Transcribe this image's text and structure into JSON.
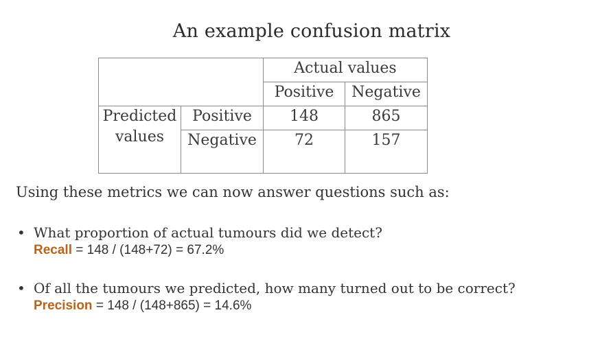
{
  "title": "An example confusion matrix",
  "matrix": {
    "actual_header": "Actual values",
    "actual_positive": "Positive",
    "actual_negative": "Negative",
    "predicted_header": "Predicted values",
    "pred_positive": "Positive",
    "pred_negative": "Negative",
    "tp": "148",
    "fp": "865",
    "fn": "72",
    "tn": "157"
  },
  "intro": "Using these metrics we can now answer questions such as:",
  "bullets": [
    {
      "question": "What proportion of actual tumours did we detect?",
      "term": "Recall",
      "expression": " = 148 / (148+72) = 67.2%"
    },
    {
      "question": "Of all the tumours we predicted, how many turned out to be correct?",
      "term": "Precision",
      "expression": " = 148 / (148+865) = 14.6%"
    }
  ],
  "colors": {
    "accent": "#b5651d",
    "text": "#333333",
    "border": "#8a8a8a"
  }
}
